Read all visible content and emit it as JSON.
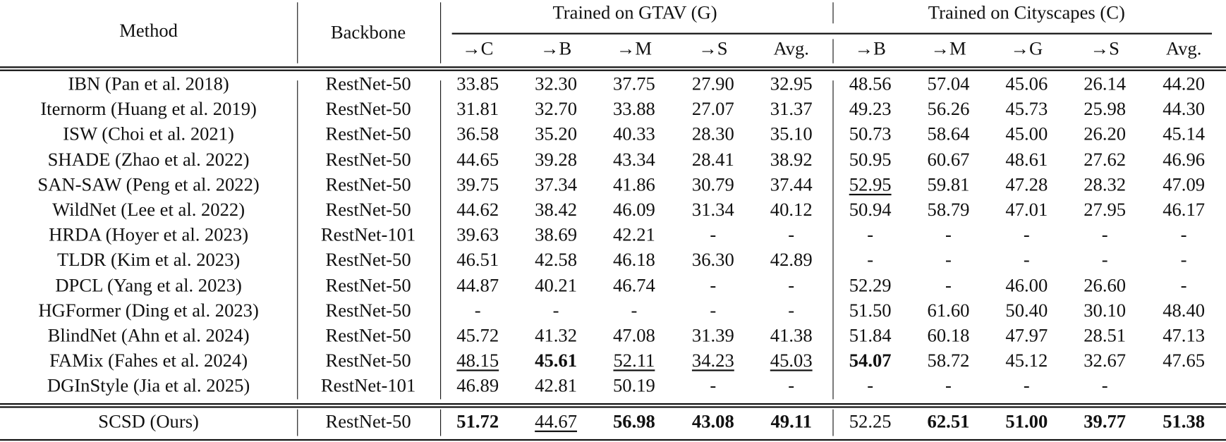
{
  "header": {
    "method": "Method",
    "backbone": "Backbone",
    "group_g": "Trained on GTAV (G)",
    "group_c": "Trained on Cityscapes (C)",
    "cols_g": [
      "→C",
      "→B",
      "→M",
      "→S",
      "Avg."
    ],
    "cols_c": [
      "→B",
      "→M",
      "→G",
      "→S",
      "Avg."
    ]
  },
  "rows": [
    {
      "method": "IBN (Pan et al. 2018)",
      "backbone": "RestNet-50",
      "values": [
        "33.85",
        "32.30",
        "37.75",
        "27.90",
        "32.95",
        "48.56",
        "57.04",
        "45.06",
        "26.14",
        "44.20"
      ],
      "bold": [],
      "underline": []
    },
    {
      "method": "Iternorm (Huang et al. 2019)",
      "backbone": "RestNet-50",
      "values": [
        "31.81",
        "32.70",
        "33.88",
        "27.07",
        "31.37",
        "49.23",
        "56.26",
        "45.73",
        "25.98",
        "44.30"
      ],
      "bold": [],
      "underline": []
    },
    {
      "method": "ISW (Choi et al. 2021)",
      "backbone": "RestNet-50",
      "values": [
        "36.58",
        "35.20",
        "40.33",
        "28.30",
        "35.10",
        "50.73",
        "58.64",
        "45.00",
        "26.20",
        "45.14"
      ],
      "bold": [],
      "underline": []
    },
    {
      "method": "SHADE (Zhao et al. 2022)",
      "backbone": "RestNet-50",
      "values": [
        "44.65",
        "39.28",
        "43.34",
        "28.41",
        "38.92",
        "50.95",
        "60.67",
        "48.61",
        "27.62",
        "46.96"
      ],
      "bold": [],
      "underline": []
    },
    {
      "method": "SAN-SAW (Peng et al. 2022)",
      "backbone": "RestNet-50",
      "values": [
        "39.75",
        "37.34",
        "41.86",
        "30.79",
        "37.44",
        "52.95",
        "59.81",
        "47.28",
        "28.32",
        "47.09"
      ],
      "bold": [],
      "underline": [
        5
      ]
    },
    {
      "method": "WildNet (Lee et al. 2022)",
      "backbone": "RestNet-50",
      "values": [
        "44.62",
        "38.42",
        "46.09",
        "31.34",
        "40.12",
        "50.94",
        "58.79",
        "47.01",
        "27.95",
        "46.17"
      ],
      "bold": [],
      "underline": []
    },
    {
      "method": "HRDA (Hoyer et al. 2023)",
      "backbone": "RestNet-101",
      "values": [
        "39.63",
        "38.69",
        "42.21",
        "-",
        "-",
        "-",
        "-",
        "-",
        "-",
        "-"
      ],
      "bold": [],
      "underline": []
    },
    {
      "method": "TLDR (Kim et al. 2023)",
      "backbone": "RestNet-50",
      "values": [
        "46.51",
        "42.58",
        "46.18",
        "36.30",
        "42.89",
        "-",
        "-",
        "-",
        "-",
        "-"
      ],
      "bold": [],
      "underline": []
    },
    {
      "method": "DPCL (Yang et al. 2023)",
      "backbone": "RestNet-50",
      "values": [
        "44.87",
        "40.21",
        "46.74",
        "-",
        "-",
        "52.29",
        "-",
        "46.00",
        "26.60",
        "-"
      ],
      "bold": [],
      "underline": []
    },
    {
      "method": "HGFormer (Ding et al. 2023)",
      "backbone": "RestNet-50",
      "values": [
        "-",
        "-",
        "-",
        "-",
        "-",
        "51.50",
        "61.60",
        "50.40",
        "30.10",
        "48.40"
      ],
      "bold": [],
      "underline": []
    },
    {
      "method": "BlindNet (Ahn et al. 2024)",
      "backbone": "RestNet-50",
      "values": [
        "45.72",
        "41.32",
        "47.08",
        "31.39",
        "41.38",
        "51.84",
        "60.18",
        "47.97",
        "28.51",
        "47.13"
      ],
      "bold": [],
      "underline": []
    },
    {
      "method": "FAMix (Fahes et al. 2024)",
      "backbone": "RestNet-50",
      "values": [
        "48.15",
        "45.61",
        "52.11",
        "34.23",
        "45.03",
        "54.07",
        "58.72",
        "45.12",
        "32.67",
        "47.65"
      ],
      "bold": [
        1,
        5
      ],
      "underline": [
        0,
        2,
        3,
        4
      ]
    },
    {
      "method": "DGInStyle (Jia et al. 2025)",
      "backbone": "RestNet-101",
      "values": [
        "46.89",
        "42.81",
        "50.19",
        "-",
        "-",
        "-",
        "-",
        "-",
        "-",
        ""
      ],
      "bold": [],
      "underline": []
    }
  ],
  "ours": {
    "method": "SCSD (Ours)",
    "backbone": "RestNet-50",
    "values": [
      "51.72",
      "44.67",
      "56.98",
      "43.08",
      "49.11",
      "52.25",
      "62.51",
      "51.00",
      "39.77",
      "51.38"
    ],
    "bold": [
      0,
      2,
      3,
      4,
      6,
      7,
      8,
      9
    ],
    "underline": [
      1
    ]
  }
}
